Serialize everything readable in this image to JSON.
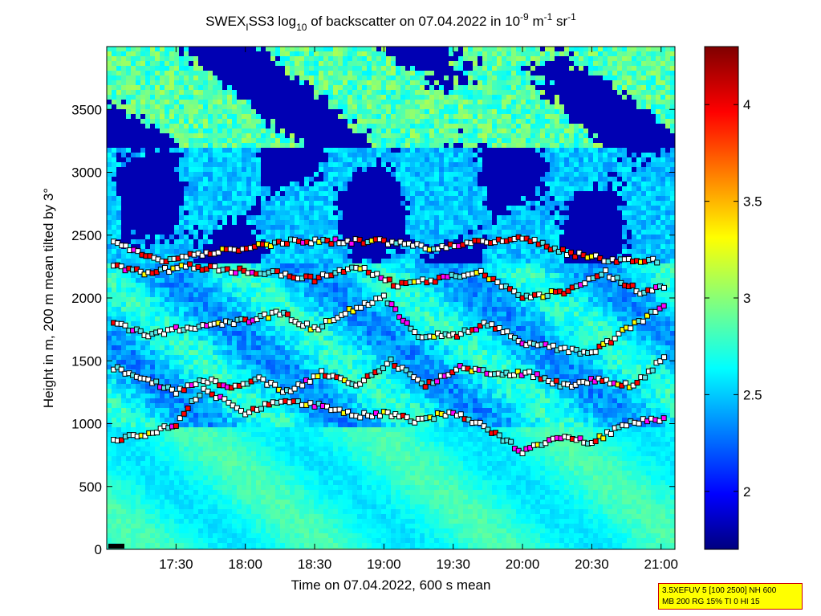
{
  "chart_data": {
    "type": "heatmap",
    "title": {
      "prefix": "SWEX",
      "sub1": "I",
      "mid": "SS3 log",
      "sub2": "10",
      "after": " of backscatter on 07.04.2022 in 10",
      "sup1": "-9",
      "unit1": " m",
      "sup2": "-1",
      "unit2": " sr",
      "sup3": "-1"
    },
    "xlabel": "Time on 07.04.2022, 600 s mean",
    "ylabel": "Height in m, 200 m mean tilted by 3°",
    "x_ticks": [
      "17:30",
      "18:00",
      "18:30",
      "19:00",
      "19:30",
      "20:00",
      "20:30",
      "21:00"
    ],
    "x_tick_hours": [
      17.5,
      18.0,
      18.5,
      19.0,
      19.5,
      20.0,
      20.5,
      21.0
    ],
    "xlim_hours": [
      17.0,
      21.1
    ],
    "y_ticks": [
      "0",
      "500",
      "1000",
      "1500",
      "2000",
      "2500",
      "3000",
      "3500"
    ],
    "y_tick_values": [
      0,
      500,
      1000,
      1500,
      2000,
      2500,
      3000,
      3500
    ],
    "ylim": [
      0,
      4000
    ],
    "colorbar": {
      "ticks": [
        "2",
        "2.5",
        "3",
        "3.5",
        "4"
      ],
      "tick_values": [
        2.0,
        2.5,
        3.0,
        3.5,
        4.0
      ],
      "range": [
        1.7,
        4.3
      ]
    },
    "layers": [
      {
        "t": [
          17.05,
          17.25,
          17.5,
          17.7,
          18.0,
          18.2,
          18.5,
          18.8,
          19.0,
          19.25,
          19.5,
          19.75,
          20.0,
          20.25,
          20.5,
          20.75,
          21.05
        ],
        "h": [
          880,
          900,
          1000,
          1280,
          1080,
          1180,
          1150,
          1060,
          1080,
          1020,
          1100,
          960,
          780,
          900,
          850,
          1000,
          1050
        ]
      },
      {
        "t": [
          17.05,
          17.3,
          17.5,
          17.7,
          17.9,
          18.1,
          18.3,
          18.55,
          18.8,
          19.05,
          19.3,
          19.55,
          19.8,
          20.05,
          20.3,
          20.55,
          20.8,
          21.05
        ],
        "h": [
          1450,
          1350,
          1250,
          1350,
          1300,
          1350,
          1250,
          1400,
          1300,
          1500,
          1300,
          1450,
          1400,
          1400,
          1300,
          1350,
          1300,
          1550
        ]
      },
      {
        "t": [
          17.05,
          17.3,
          17.5,
          17.75,
          18.0,
          18.25,
          18.5,
          18.75,
          19.0,
          19.25,
          19.5,
          19.75,
          20.0,
          20.25,
          20.5,
          20.75,
          21.05
        ],
        "h": [
          1800,
          1700,
          1750,
          1780,
          1820,
          1880,
          1750,
          1900,
          2000,
          1700,
          1700,
          1800,
          1650,
          1600,
          1550,
          1750,
          1950
        ]
      },
      {
        "t": [
          17.05,
          17.3,
          17.6,
          17.9,
          18.2,
          18.5,
          18.8,
          19.1,
          19.4,
          19.7,
          20.0,
          20.3,
          20.6,
          20.85,
          21.05
        ],
        "h": [
          2250,
          2200,
          2250,
          2220,
          2200,
          2150,
          2250,
          2100,
          2150,
          2200,
          2000,
          2050,
          2200,
          2050,
          2100
        ]
      },
      {
        "t": [
          17.05,
          17.4,
          18.3,
          19.0,
          19.3,
          19.6,
          20.0,
          20.35,
          20.65,
          21.0
        ],
        "h": [
          2450,
          2300,
          2450,
          2450,
          2400,
          2430,
          2480,
          2350,
          2300,
          2300
        ]
      }
    ]
  },
  "info_box": {
    "line1": "3.5XEFUV 5 [100 2500] NH 600",
    "line2": "MB 200 RG 15% TI 0 HI 15"
  }
}
